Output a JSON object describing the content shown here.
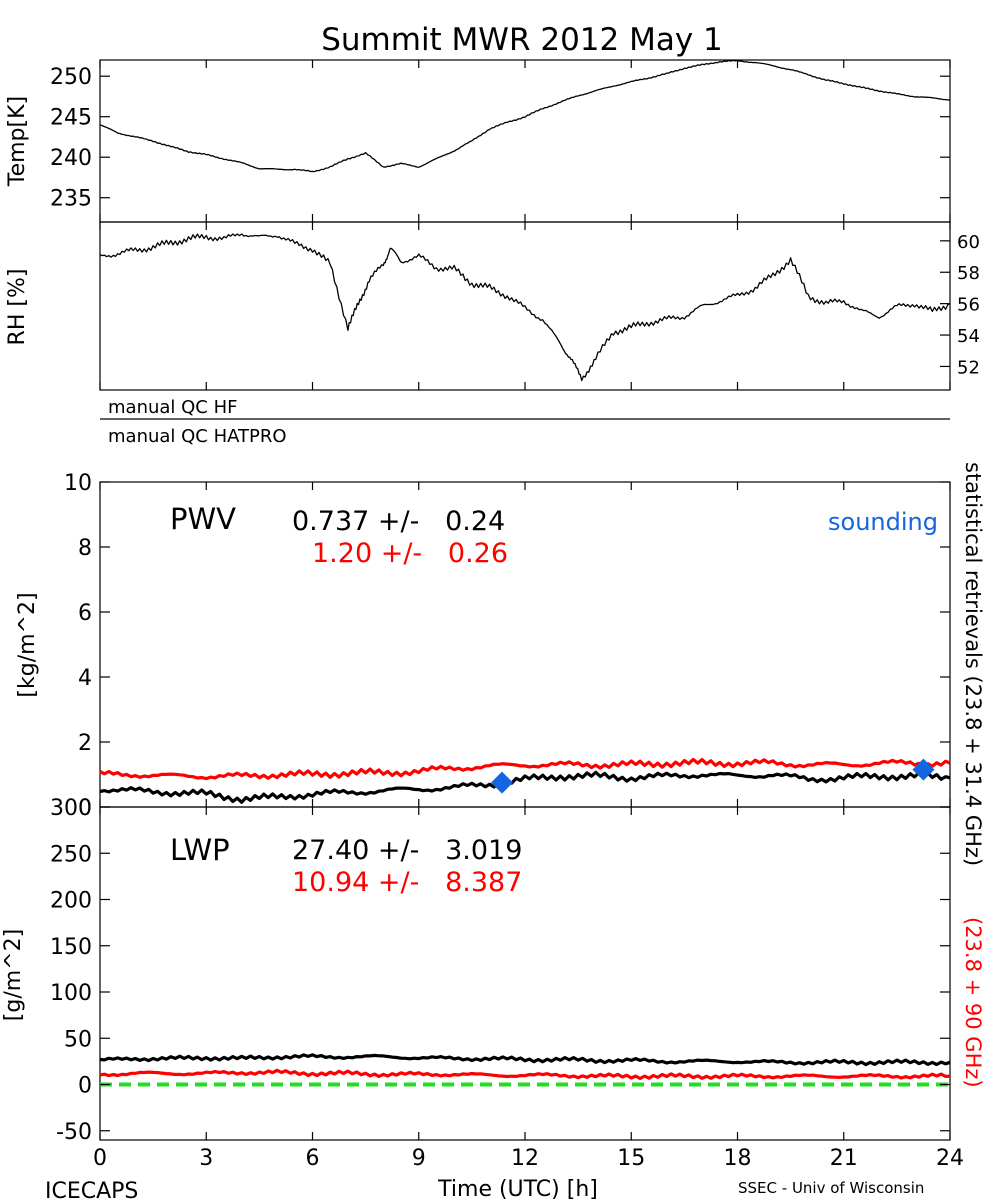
{
  "figure": {
    "title": "Summit MWR 2012 May  1",
    "footer_left": "ICECAPS",
    "footer_right": "SSEC - Univ of Wisconsin",
    "x_axis_label": "Time (UTC) [h]",
    "right_label_black": "statistical retrievals (23.8 + 31.4 GHz)",
    "right_label_red": "(23.8 + 90 GHz)",
    "qc_hf": "manual QC HF",
    "qc_hatpro": "manual QC HATPRO",
    "colors": {
      "black": "#000000",
      "red": "#ff0000",
      "blue": "#1565e0",
      "green": "#22dd22"
    }
  },
  "chart_data": [
    {
      "type": "line",
      "id": "temp",
      "ylabel": "Temp[K]",
      "xlim": [
        0,
        24
      ],
      "ylim": [
        232,
        252
      ],
      "yticks": [
        235,
        240,
        245,
        250
      ],
      "series": [
        {
          "color": "black",
          "x": [
            0,
            0.5,
            1,
            1.5,
            2,
            2.5,
            3,
            3.5,
            4,
            4.5,
            5,
            5.5,
            6,
            6.5,
            7,
            7.5,
            8,
            8.5,
            9,
            9.5,
            10,
            10.5,
            11,
            11.5,
            12,
            12.5,
            13,
            13.5,
            14,
            14.5,
            15,
            15.5,
            16,
            16.5,
            17,
            17.5,
            18,
            18.5,
            19,
            19.5,
            20,
            20.5,
            21,
            21.5,
            22,
            22.5,
            23,
            23.5,
            24
          ],
          "y": [
            244,
            243,
            242.5,
            242,
            241.3,
            240.7,
            240.3,
            239.8,
            239.3,
            238.6,
            238.5,
            238.5,
            238.2,
            238.8,
            239.8,
            240.5,
            238.8,
            239.2,
            238.8,
            239.8,
            240.8,
            242,
            243.5,
            244.3,
            245,
            246,
            246.8,
            247.6,
            248.2,
            248.8,
            249.3,
            249.8,
            250.3,
            251,
            251.4,
            251.8,
            251.9,
            251.7,
            251.3,
            250.8,
            250.2,
            249.5,
            249.1,
            248.6,
            248.2,
            247.8,
            247.5,
            247.3,
            247.1
          ]
        }
      ]
    },
    {
      "type": "line",
      "id": "rh",
      "ylabel": "RH [%]",
      "xlim": [
        0,
        24
      ],
      "ylim": [
        50.5,
        61.2
      ],
      "yticks": [
        52,
        54,
        56,
        58,
        60
      ],
      "series": [
        {
          "color": "black",
          "x": [
            0,
            0.5,
            1,
            1.5,
            2,
            2.5,
            3,
            3.5,
            4,
            4.5,
            5,
            5.5,
            6,
            6.5,
            7,
            7.3,
            7.6,
            8,
            8.2,
            8.5,
            9,
            9.5,
            10,
            10.5,
            11,
            11.5,
            12,
            12.5,
            13,
            13.3,
            13.6,
            14,
            14.5,
            15,
            15.5,
            16,
            16.5,
            17,
            17.5,
            18,
            18.5,
            19,
            19.5,
            20,
            20.5,
            21,
            21.5,
            22,
            22.5,
            23,
            23.5,
            24
          ],
          "y": [
            59,
            59.2,
            59.4,
            59.6,
            59.9,
            60.1,
            60.3,
            60.1,
            60.5,
            60.2,
            60.4,
            59.8,
            59.5,
            58.5,
            54.5,
            56,
            57.5,
            58.5,
            59.5,
            58.7,
            59,
            58.3,
            58.2,
            57.3,
            57,
            56.5,
            55.7,
            55,
            53.4,
            52.5,
            51.2,
            52.5,
            54.2,
            54.5,
            54.8,
            55,
            55.2,
            55.8,
            56.2,
            56.5,
            57,
            57.8,
            58.8,
            56.5,
            56,
            56.2,
            55.5,
            55.2,
            55.8,
            56,
            55.5,
            56
          ]
        }
      ]
    },
    {
      "type": "line",
      "id": "pwv",
      "title": "PWV",
      "ylabel": "[kg/m^2]",
      "xlim": [
        0,
        24
      ],
      "ylim": [
        0,
        10
      ],
      "yticks": [
        0,
        2,
        4,
        6,
        8,
        10
      ],
      "annotations": [
        {
          "text": "0.737 +/-   0.24",
          "color": "black"
        },
        {
          "text": "1.20 +/-   0.26",
          "color": "red"
        },
        {
          "text": "sounding",
          "color": "blue"
        }
      ],
      "series": [
        {
          "color": "black",
          "x": [
            0,
            1,
            2,
            3,
            4,
            5,
            6,
            7,
            8,
            9,
            10,
            11,
            12,
            13,
            14,
            15,
            16,
            17,
            18,
            19,
            20,
            21,
            22,
            23,
            24
          ],
          "y": [
            0.55,
            0.5,
            0.45,
            0.4,
            0.25,
            0.3,
            0.4,
            0.45,
            0.5,
            0.55,
            0.6,
            0.7,
            0.85,
            0.95,
            0.95,
            0.9,
            0.95,
            1.0,
            0.95,
            1.0,
            0.85,
            0.9,
            0.95,
            0.95,
            0.9
          ]
        },
        {
          "color": "red",
          "x": [
            0,
            1,
            2,
            3,
            4,
            5,
            6,
            7,
            8,
            9,
            10,
            11,
            12,
            13,
            14,
            15,
            16,
            17,
            18,
            19,
            20,
            21,
            22,
            23,
            24
          ],
          "y": [
            1.0,
            1.0,
            0.95,
            0.95,
            0.95,
            1.0,
            1.0,
            1.05,
            1.05,
            1.1,
            1.2,
            1.25,
            1.3,
            1.3,
            1.3,
            1.3,
            1.35,
            1.35,
            1.35,
            1.35,
            1.3,
            1.3,
            1.35,
            1.35,
            1.35
          ]
        },
        {
          "color": "blue",
          "marker": "diamond",
          "x": [
            11.35,
            23.25
          ],
          "y": [
            0.75,
            1.15
          ]
        }
      ]
    },
    {
      "type": "line",
      "id": "lwp",
      "title": "LWP",
      "ylabel": "[g/m^2]",
      "xlim": [
        0,
        24
      ],
      "ylim": [
        -60,
        300
      ],
      "yticks": [
        -50,
        0,
        50,
        100,
        150,
        200,
        250,
        300
      ],
      "annotations": [
        {
          "text": "27.40 +/-   3.019",
          "color": "black"
        },
        {
          "text": "10.94 +/-   8.387",
          "color": "red"
        }
      ],
      "series": [
        {
          "color": "black",
          "x": [
            0,
            1,
            2,
            3,
            4,
            5,
            6,
            7,
            8,
            9,
            10,
            11,
            12,
            13,
            14,
            15,
            16,
            17,
            18,
            19,
            20,
            21,
            22,
            23,
            24
          ],
          "y": [
            26,
            28,
            28,
            29,
            28,
            30,
            30,
            30,
            30,
            29,
            28,
            28,
            27,
            27,
            26,
            26,
            25,
            25,
            25,
            24,
            24,
            24,
            24,
            24,
            24
          ]
        },
        {
          "color": "red",
          "x": [
            0,
            1,
            2,
            3,
            4,
            5,
            6,
            7,
            8,
            9,
            10,
            11,
            12,
            13,
            14,
            15,
            16,
            17,
            18,
            19,
            20,
            21,
            22,
            23,
            24
          ],
          "y": [
            11,
            12,
            12,
            12,
            13,
            13,
            12,
            12,
            11,
            11,
            11,
            10,
            10,
            10,
            9,
            9,
            9,
            9,
            9,
            9,
            9,
            9,
            9,
            9,
            9
          ]
        },
        {
          "color": "green",
          "style": "dashed",
          "x": [
            0,
            24
          ],
          "y": [
            0,
            0
          ]
        }
      ]
    }
  ],
  "x_ticks": [
    0,
    3,
    6,
    9,
    12,
    15,
    18,
    21,
    24
  ]
}
